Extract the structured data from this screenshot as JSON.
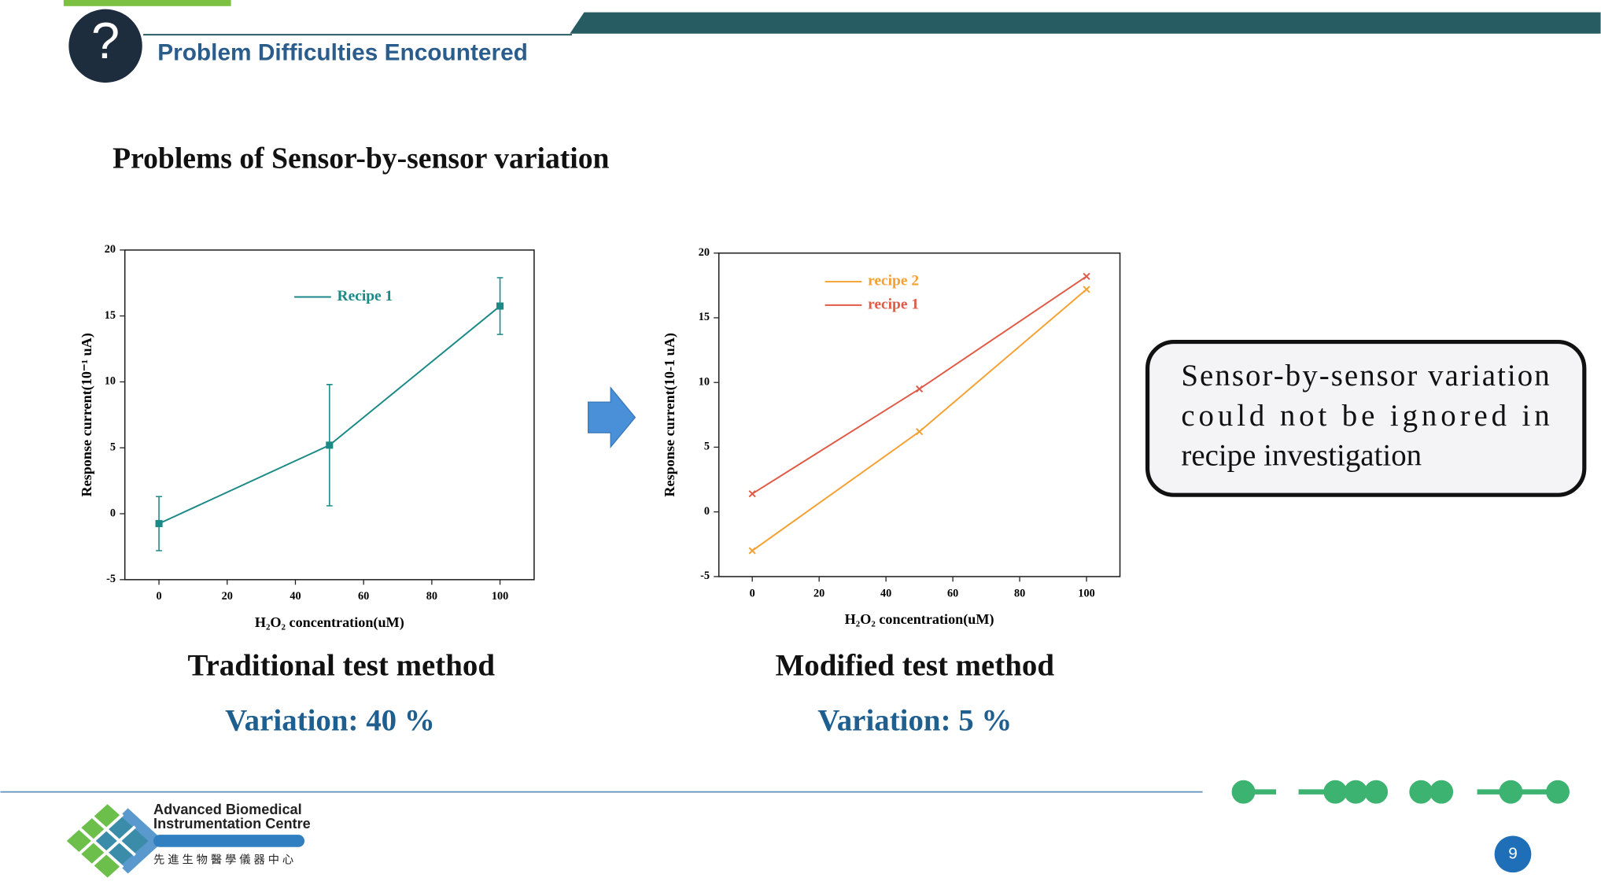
{
  "header": {
    "title": "Problem Difficulties Encountered",
    "icon": "?"
  },
  "heading": "Problems of Sensor-by-sensor variation",
  "chart_data": [
    {
      "type": "line",
      "x": [
        0,
        50,
        100
      ],
      "series": [
        {
          "name": "Recipe 1",
          "color": "#1b8a87",
          "values": [
            -0.75,
            5.2,
            15.75
          ],
          "errors": [
            2.05,
            4.6,
            2.15
          ]
        }
      ],
      "xlim": [
        -10,
        110
      ],
      "ylim": [
        -5,
        20
      ],
      "xticks": [
        0,
        20,
        40,
        60,
        80,
        100
      ],
      "yticks": [
        -5,
        0,
        5,
        10,
        15,
        20
      ],
      "x_label": "H₂O₂ concentration(uM)",
      "y_label": "Response current(10⁻¹ uA)",
      "marker": "square"
    },
    {
      "type": "line",
      "x": [
        0,
        50,
        100
      ],
      "series": [
        {
          "name": "recipe 2",
          "color": "#f5a030",
          "values": [
            -3.0,
            6.2,
            17.2
          ]
        },
        {
          "name": "recipe 1",
          "color": "#e05a45",
          "values": [
            1.4,
            9.5,
            18.2
          ]
        }
      ],
      "xlim": [
        -10,
        110
      ],
      "ylim": [
        -5,
        20
      ],
      "xticks": [
        0,
        20,
        40,
        60,
        80,
        100
      ],
      "yticks": [
        -5,
        0,
        5,
        10,
        15,
        20
      ],
      "x_label": "H₂O₂ concentration(uM)",
      "y_label": "Response current(10-1 uA)",
      "marker": "x"
    }
  ],
  "captions": [
    {
      "method": "Traditional test method",
      "variation": "Variation: 40 %"
    },
    {
      "method": "Modified test method",
      "variation": "Variation: 5 %"
    }
  ],
  "callout": [
    "Sensor-by-sensor  variation",
    "could  not  be  ignored  in",
    "recipe investigation"
  ],
  "logo": {
    "line1": "Advanced Biomedical",
    "line2": "Instrumentation Centre",
    "chinese": "先 進 生 物 醫 學 儀 器 中 心"
  },
  "page_number": "9"
}
